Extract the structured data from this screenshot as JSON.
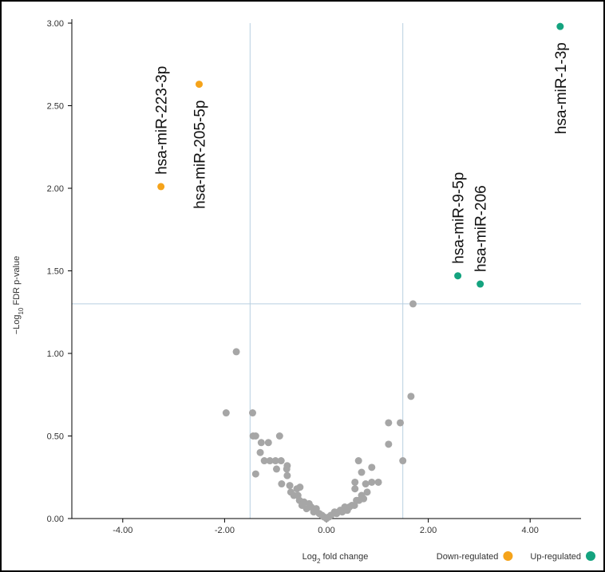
{
  "chart_data": {
    "type": "scatter",
    "x_label": [
      "Log",
      "2",
      " fold change"
    ],
    "y_label": [
      "−Log",
      "10",
      " FDR p-value"
    ],
    "xlim": [
      -5,
      5
    ],
    "ylim": [
      0,
      3
    ],
    "xticks": [
      {
        "value": -4,
        "label": "-4.00"
      },
      {
        "value": -2,
        "label": "-2.00"
      },
      {
        "value": 0,
        "label": "0.00"
      },
      {
        "value": 2,
        "label": "2.00"
      },
      {
        "value": 4,
        "label": "4.00"
      }
    ],
    "yticks": [
      {
        "value": 0,
        "label": "0.00"
      },
      {
        "value": 0.5,
        "label": "0.50"
      },
      {
        "value": 1,
        "label": "1.00"
      },
      {
        "value": 1.5,
        "label": "1.50"
      },
      {
        "value": 2,
        "label": "2.00"
      },
      {
        "value": 2.5,
        "label": "2.50"
      },
      {
        "value": 3,
        "label": "3.00"
      }
    ],
    "vlines": [
      -1.5,
      1.5
    ],
    "hline": 1.3,
    "threshold_color": "#b8cfe0",
    "legend": "bottom-right",
    "series": [
      {
        "color": "#a6a6a6",
        "x": [
          -1.97,
          -1.77,
          -1.45,
          -1.44,
          -1.39,
          -1.28,
          -1.14,
          -1.3,
          -1.39,
          -1.22,
          -1.11,
          -1.0,
          -0.92,
          -0.89,
          -0.88,
          -0.98,
          -0.78,
          -0.77,
          -0.77,
          -0.72,
          -0.7,
          -0.64,
          -0.58,
          -0.52,
          -0.56,
          -0.53,
          -0.48,
          -0.44,
          -0.39,
          -0.34,
          -0.3,
          -0.25,
          -0.2,
          -0.14,
          -0.09,
          -0.05,
          0,
          0.05,
          0.09,
          0.16,
          0.2,
          0.27,
          0.31,
          0.36,
          0.41,
          0.45,
          0.5,
          0.55,
          0.59,
          0.64,
          0.69,
          0.73,
          0.8,
          0.56,
          0.56,
          0.63,
          0.69,
          0.77,
          0.89,
          0.89,
          1.02,
          1.22,
          1.22,
          1.45,
          1.5,
          1.66,
          1.7
        ],
        "values": [
          0.64,
          1.01,
          0.64,
          0.5,
          0.5,
          0.46,
          0.46,
          0.4,
          0.27,
          0.35,
          0.35,
          0.35,
          0.5,
          0.35,
          0.21,
          0.3,
          0.3,
          0.32,
          0.26,
          0.2,
          0.16,
          0.14,
          0.18,
          0.19,
          0.14,
          0.11,
          0.08,
          0.1,
          0.06,
          0.09,
          0.07,
          0.04,
          0.06,
          0.03,
          0.02,
          0.01,
          0,
          0.01,
          0.02,
          0.04,
          0.03,
          0.05,
          0.04,
          0.07,
          0.05,
          0.07,
          0.08,
          0.08,
          0.11,
          0.11,
          0.14,
          0.12,
          0.16,
          0.18,
          0.22,
          0.35,
          0.28,
          0.21,
          0.31,
          0.22,
          0.22,
          0.58,
          0.45,
          0.58,
          0.35,
          0.74,
          1.3
        ]
      },
      {
        "name": "Down-regulated",
        "color": "#f5a31a",
        "x": [
          -3.25,
          -2.5
        ],
        "values": [
          2.01,
          2.63
        ],
        "labels": [
          "hsa-miR-223-3p",
          "hsa-miR-205-5p"
        ]
      },
      {
        "name": "Up-regulated",
        "color": "#14a37f",
        "x": [
          4.59,
          2.58,
          3.02
        ],
        "values": [
          2.98,
          1.47,
          1.42
        ],
        "labels": [
          "hsa-miR-1-3p",
          "hsa-miR-9-5p",
          "hsa-miR-206"
        ]
      }
    ]
  }
}
